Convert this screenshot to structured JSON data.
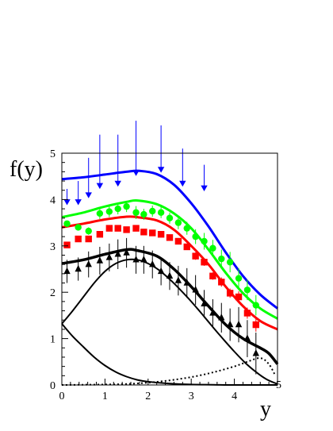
{
  "chart_data": {
    "type": "scatter",
    "title": "",
    "ylabel": "f(y)",
    "xlabel": "y",
    "xlim": [
      0,
      5
    ],
    "ylim": [
      0,
      5
    ],
    "xticks": [
      0,
      1,
      2,
      3,
      4,
      5
    ],
    "yticks": [
      0,
      1,
      2,
      3,
      4,
      5
    ],
    "grid": false,
    "legend": "none",
    "curves": [
      {
        "color": "#0000ff",
        "style": "solid",
        "x": [
          0,
          0.5,
          1.0,
          1.5,
          1.8,
          2.2,
          2.6,
          3.0,
          3.4,
          3.8,
          4.2,
          4.6,
          5.0
        ],
        "y": [
          4.44,
          4.48,
          4.54,
          4.6,
          4.62,
          4.55,
          4.32,
          3.92,
          3.42,
          2.86,
          2.35,
          1.95,
          1.65
        ]
      },
      {
        "color": "#00ff00",
        "style": "solid",
        "x": [
          0,
          0.5,
          1.0,
          1.5,
          1.75,
          2.2,
          2.6,
          3.0,
          3.4,
          3.8,
          4.2,
          4.6,
          5.0
        ],
        "y": [
          3.62,
          3.72,
          3.85,
          3.95,
          3.98,
          3.9,
          3.7,
          3.38,
          2.92,
          2.42,
          1.98,
          1.65,
          1.43
        ]
      },
      {
        "color": "#ff0000",
        "style": "solid",
        "x": [
          0,
          0.5,
          1.0,
          1.5,
          1.75,
          2.2,
          2.6,
          3.0,
          3.4,
          3.8,
          4.2,
          4.6,
          5.0
        ],
        "y": [
          3.4,
          3.48,
          3.57,
          3.63,
          3.62,
          3.55,
          3.35,
          3.0,
          2.6,
          2.12,
          1.7,
          1.38,
          1.2
        ]
      },
      {
        "color": "#000000",
        "style": "thick",
        "x": [
          0,
          0.5,
          1.0,
          1.5,
          1.75,
          2.2,
          2.6,
          3.0,
          3.4,
          3.8,
          4.2,
          4.6,
          4.8,
          5.0
        ],
        "y": [
          2.62,
          2.7,
          2.82,
          2.92,
          2.9,
          2.78,
          2.5,
          2.12,
          1.7,
          1.3,
          1.0,
          0.8,
          0.68,
          0.45
        ]
      },
      {
        "color": "#000000",
        "style": "solid",
        "x": [
          0,
          0.25,
          0.5,
          0.75,
          1.0,
          1.25,
          1.5,
          1.75,
          2.0,
          2.25,
          2.5,
          2.75,
          3.0,
          3.25,
          3.5,
          3.75,
          4.0,
          4.25,
          4.5,
          4.75,
          5.0
        ],
        "y": [
          1.32,
          1.6,
          1.9,
          2.2,
          2.45,
          2.62,
          2.7,
          2.7,
          2.62,
          2.48,
          2.28,
          2.05,
          1.8,
          1.53,
          1.25,
          0.98,
          0.72,
          0.48,
          0.28,
          0.12,
          0.02
        ]
      },
      {
        "color": "#000000",
        "style": "solid",
        "x": [
          0,
          0.25,
          0.5,
          0.75,
          1.0,
          1.25,
          1.5,
          1.75,
          2.0,
          2.5,
          3.0,
          3.5,
          4.0,
          4.5,
          5.0
        ],
        "y": [
          1.32,
          1.05,
          0.82,
          0.6,
          0.42,
          0.28,
          0.18,
          0.11,
          0.07,
          0.03,
          0.01,
          0.005,
          0,
          0,
          0
        ]
      },
      {
        "color": "#000000",
        "style": "dotted",
        "x": [
          0,
          0.5,
          1.0,
          1.5,
          2.0,
          2.5,
          3.0,
          3.5,
          4.0,
          4.3,
          4.6,
          4.8,
          4.95
        ],
        "y": [
          0,
          0.005,
          0.01,
          0.02,
          0.05,
          0.1,
          0.17,
          0.27,
          0.4,
          0.5,
          0.58,
          0.45,
          0.2
        ]
      }
    ],
    "series": [
      {
        "marker": "triangle-down",
        "color": "#0000ff",
        "x": [
          0.12,
          0.38,
          0.62,
          0.88,
          1.3,
          1.72,
          2.3,
          2.8,
          3.3
        ],
        "y": [
          3.95,
          3.95,
          4.1,
          4.3,
          4.35,
          4.58,
          4.65,
          4.35,
          4.25
        ],
        "err": [
          0.28,
          0.45,
          0.8,
          1.1,
          1.05,
          1.12,
          0.95,
          0.75,
          0.5
        ]
      },
      {
        "marker": "circle",
        "color": "#00ff00",
        "x": [
          0.12,
          0.38,
          0.62,
          0.88,
          1.1,
          1.3,
          1.5,
          1.72,
          1.9,
          2.1,
          2.3,
          2.5,
          2.7,
          2.9,
          3.1,
          3.3,
          3.5,
          3.7,
          3.9,
          4.1,
          4.3,
          4.5
        ],
        "y": [
          3.48,
          3.4,
          3.32,
          3.7,
          3.74,
          3.8,
          3.85,
          3.72,
          3.68,
          3.75,
          3.72,
          3.6,
          3.5,
          3.38,
          3.2,
          3.1,
          2.95,
          2.72,
          2.65,
          2.3,
          2.05,
          1.72
        ],
        "err": [
          0,
          0,
          0.08,
          0.12,
          0.12,
          0.12,
          0.12,
          0.14,
          0.12,
          0.12,
          0.12,
          0.12,
          0.14,
          0.14,
          0.16,
          0.18,
          0.18,
          0.2,
          0.22,
          0.22,
          0.22,
          0.22
        ]
      },
      {
        "marker": "square",
        "color": "#ff0000",
        "x": [
          0.12,
          0.38,
          0.62,
          0.88,
          1.1,
          1.3,
          1.5,
          1.72,
          1.9,
          2.1,
          2.3,
          2.5,
          2.7,
          2.9,
          3.1,
          3.3,
          3.5,
          3.7,
          3.9,
          4.1,
          4.3,
          4.5
        ],
        "y": [
          3.02,
          3.15,
          3.15,
          3.25,
          3.38,
          3.38,
          3.35,
          3.38,
          3.3,
          3.28,
          3.25,
          3.18,
          3.1,
          2.98,
          2.78,
          2.65,
          2.35,
          2.22,
          1.98,
          1.9,
          1.55,
          1.3
        ],
        "err": [
          0,
          0,
          0,
          0.05,
          0.05,
          0.05,
          0.05,
          0.05,
          0.05,
          0.06,
          0.06,
          0.06,
          0.06,
          0.06,
          0.08,
          0.08,
          0.08,
          0.1,
          0.1,
          0.12,
          0.12,
          0.15
        ]
      },
      {
        "marker": "triangle-up",
        "color": "#000000",
        "x": [
          0.12,
          0.38,
          0.62,
          0.88,
          1.1,
          1.3,
          1.5,
          1.72,
          1.9,
          2.1,
          2.3,
          2.5,
          2.7,
          2.9,
          3.1,
          3.3,
          3.5,
          3.7,
          3.9,
          4.1,
          4.3,
          4.5
        ],
        "y": [
          2.45,
          2.5,
          2.6,
          2.68,
          2.75,
          2.82,
          2.85,
          2.7,
          2.7,
          2.6,
          2.45,
          2.35,
          2.25,
          2.2,
          2.05,
          1.75,
          1.55,
          1.45,
          1.3,
          1.3,
          1.0,
          0.68
        ],
        "err": [
          0.25,
          0.25,
          0.28,
          0.3,
          0.3,
          0.32,
          0.32,
          0.3,
          0.3,
          0.3,
          0.3,
          0.3,
          0.32,
          0.32,
          0.32,
          0.3,
          0.3,
          0.32,
          0.35,
          0.38,
          0.4,
          0.45
        ]
      }
    ]
  }
}
